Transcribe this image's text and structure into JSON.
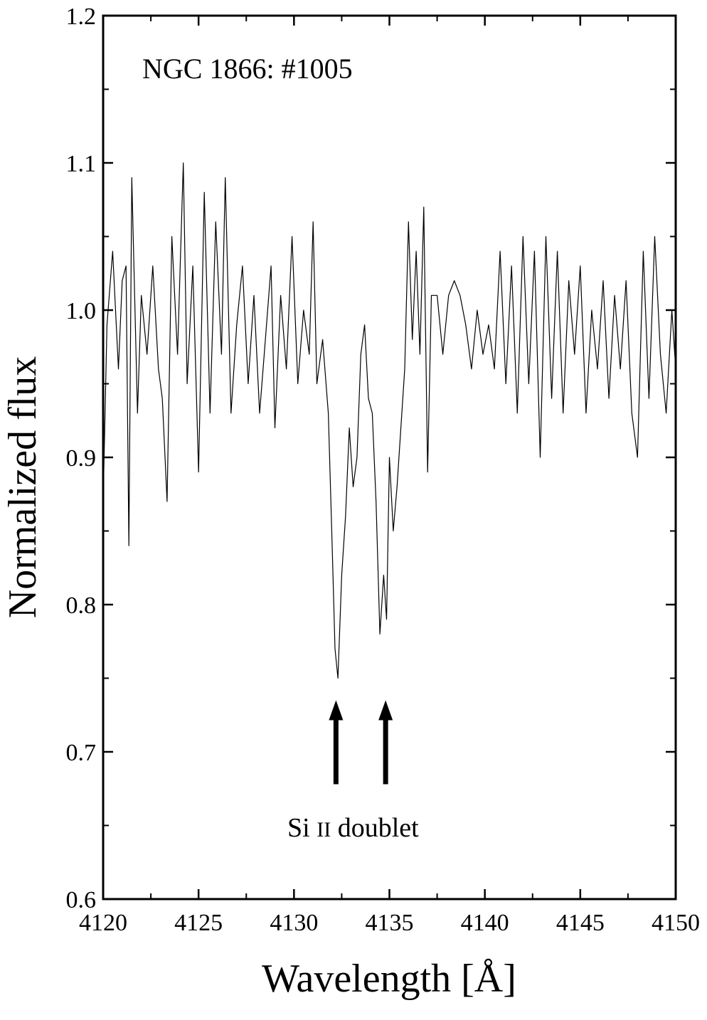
{
  "chart_data": {
    "type": "line",
    "title": "",
    "xlabel": "Wavelength [Å]",
    "ylabel": "Normalized flux",
    "xlim": [
      4120,
      4150
    ],
    "ylim": [
      0.6,
      1.2
    ],
    "xticks": [
      4120,
      4125,
      4130,
      4135,
      4140,
      4145,
      4150
    ],
    "xtick_labels": [
      "4120",
      "4125",
      "4130",
      "4135",
      "4140",
      "4145",
      "4150"
    ],
    "yticks": [
      0.6,
      0.7,
      0.8,
      0.9,
      1.0,
      1.1,
      1.2
    ],
    "ytick_labels": [
      "0.6",
      "0.7",
      "0.8",
      "0.9",
      "1.0",
      "1.1",
      "1.2"
    ],
    "grid": false,
    "legend": "none",
    "line_color": "#000000",
    "series": [
      {
        "x": [
          4120.0,
          4120.2,
          4120.5,
          4120.8,
          4121.0,
          4121.2,
          4121.35,
          4121.5,
          4121.8,
          4122.0,
          4122.3,
          4122.6,
          4122.9,
          4123.1,
          4123.35,
          4123.6,
          4123.9,
          4124.2,
          4124.4,
          4124.7,
          4125.0,
          4125.3,
          4125.6,
          4125.9,
          4126.2,
          4126.4,
          4126.7,
          4127.0,
          4127.3,
          4127.6,
          4127.9,
          4128.2,
          4128.5,
          4128.8,
          4129.0,
          4129.3,
          4129.6,
          4129.9,
          4130.2,
          4130.5,
          4130.8,
          4131.0,
          4131.2,
          4131.5,
          4131.8,
          4132.0,
          4132.15,
          4132.3,
          4132.5,
          4132.7,
          4132.9,
          4133.1,
          4133.3,
          4133.5,
          4133.7,
          4133.9,
          4134.1,
          4134.3,
          4134.5,
          4134.7,
          4134.85,
          4135.0,
          4135.2,
          4135.4,
          4135.6,
          4135.8,
          4136.0,
          4136.2,
          4136.4,
          4136.6,
          4136.8,
          4137.0,
          4137.2,
          4137.5,
          4137.8,
          4138.1,
          4138.4,
          4138.7,
          4139.0,
          4139.3,
          4139.6,
          4139.9,
          4140.2,
          4140.5,
          4140.8,
          4141.1,
          4141.4,
          4141.7,
          4142.0,
          4142.3,
          4142.6,
          4142.9,
          4143.2,
          4143.5,
          4143.8,
          4144.1,
          4144.4,
          4144.7,
          4145.0,
          4145.3,
          4145.6,
          4145.9,
          4146.2,
          4146.5,
          4146.8,
          4147.1,
          4147.4,
          4147.7,
          4148.0,
          4148.3,
          4148.6,
          4148.9,
          4149.2,
          4149.5,
          4149.8,
          4150.0
        ],
        "y": [
          0.87,
          0.99,
          1.04,
          0.96,
          1.02,
          1.03,
          0.84,
          1.09,
          0.93,
          1.01,
          0.97,
          1.03,
          0.96,
          0.94,
          0.87,
          1.05,
          0.97,
          1.1,
          0.95,
          1.03,
          0.89,
          1.08,
          0.93,
          1.06,
          0.97,
          1.09,
          0.93,
          0.99,
          1.03,
          0.95,
          1.01,
          0.93,
          0.98,
          1.03,
          0.92,
          1.01,
          0.96,
          1.05,
          0.95,
          1.0,
          0.97,
          1.06,
          0.95,
          0.98,
          0.93,
          0.84,
          0.77,
          0.75,
          0.82,
          0.86,
          0.92,
          0.88,
          0.9,
          0.97,
          0.99,
          0.94,
          0.93,
          0.87,
          0.78,
          0.82,
          0.79,
          0.9,
          0.85,
          0.88,
          0.92,
          0.96,
          1.06,
          0.98,
          1.04,
          0.97,
          1.07,
          0.89,
          1.01,
          1.01,
          0.97,
          1.01,
          1.02,
          1.01,
          0.99,
          0.96,
          1.0,
          0.97,
          0.99,
          0.96,
          1.04,
          0.95,
          1.03,
          0.93,
          1.05,
          0.95,
          1.04,
          0.9,
          1.05,
          0.94,
          1.04,
          0.93,
          1.02,
          0.97,
          1.03,
          0.93,
          1.0,
          0.96,
          1.02,
          0.94,
          1.01,
          0.96,
          1.02,
          0.93,
          0.9,
          1.04,
          0.94,
          1.05,
          0.97,
          0.93,
          1.0,
          0.96
        ]
      }
    ],
    "annotations": {
      "star_label": "NGC 1866: #1005",
      "doublet_label_element": "Si",
      "doublet_label_ion": "II",
      "doublet_label_rest": "doublet",
      "arrows": [
        {
          "x": 4132.2,
          "y_tip": 0.735,
          "y_tail": 0.678
        },
        {
          "x": 4134.8,
          "y_tip": 0.735,
          "y_tail": 0.678
        }
      ]
    }
  }
}
